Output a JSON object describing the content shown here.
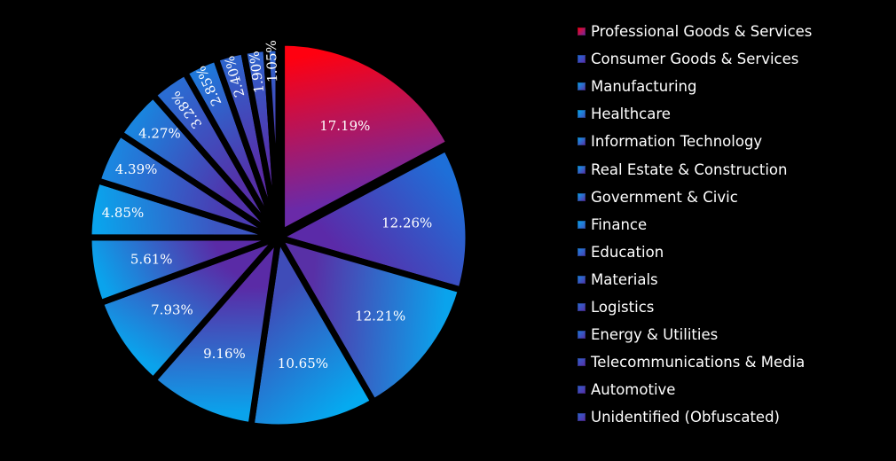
{
  "chart_data": {
    "type": "pie",
    "title": "",
    "legend_position": "right",
    "start_angle_deg": 0,
    "direction": "clockwise",
    "exploded_first_slice": true,
    "slices": [
      {
        "name": "Professional Goods & Services",
        "value": 17.19,
        "label": "17.19%",
        "color_start": "#ff0010",
        "color_end": "#6a2aa8"
      },
      {
        "name": "Consumer Goods & Services",
        "value": 12.26,
        "label": "12.26%",
        "color_start": "#1e6fd8",
        "color_end": "#5b2aa8"
      },
      {
        "name": "Manufacturing",
        "value": 12.21,
        "label": "12.21%",
        "color_start": "#0aa3ec",
        "color_end": "#5830a6"
      },
      {
        "name": "Healthcare",
        "value": 10.65,
        "label": "10.65%",
        "color_start": "#05aaf0",
        "color_end": "#3f4cb8"
      },
      {
        "name": "Information Technology",
        "value": 9.16,
        "label": "9.16%",
        "color_start": "#0aa3ec",
        "color_end": "#5a2ba6"
      },
      {
        "name": "Real Estate & Construction",
        "value": 7.93,
        "label": "7.93%",
        "color_start": "#0aa3ec",
        "color_end": "#5a2ba6"
      },
      {
        "name": "Government & Civic",
        "value": 5.61,
        "label": "5.61%",
        "color_start": "#0aa3ec",
        "color_end": "#5a2ba6"
      },
      {
        "name": "Finance",
        "value": 4.85,
        "label": "4.85%",
        "color_start": "#0aa3ec",
        "color_end": "#3c56c2"
      },
      {
        "name": "Education",
        "value": 4.39,
        "label": "4.39%",
        "color_start": "#1b86e0",
        "color_end": "#4a3cb2"
      },
      {
        "name": "Materials",
        "value": 4.27,
        "label": "4.27%",
        "color_start": "#1a84de",
        "color_end": "#5231aa"
      },
      {
        "name": "Logistics",
        "value": 3.28,
        "label": "3.28%",
        "color_start": "#2a6cd2",
        "color_end": "#5530a8"
      },
      {
        "name": "Energy & Utilities",
        "value": 2.85,
        "label": "2.85%",
        "color_start": "#1f78da",
        "color_end": "#5530a8"
      },
      {
        "name": "Telecommunications & Media",
        "value": 2.4,
        "label": "2.40%",
        "color_start": "#2e63cc",
        "color_end": "#5a2ba6"
      },
      {
        "name": "Automotive",
        "value": 1.9,
        "label": "1.90%",
        "color_start": "#2f60ca",
        "color_end": "#5a2ba6"
      },
      {
        "name": "Unidentified (Obfuscated)",
        "value": 1.05,
        "label": "1.05%",
        "color_start": "#2d64cc",
        "color_end": "#5a2ba6"
      }
    ]
  }
}
